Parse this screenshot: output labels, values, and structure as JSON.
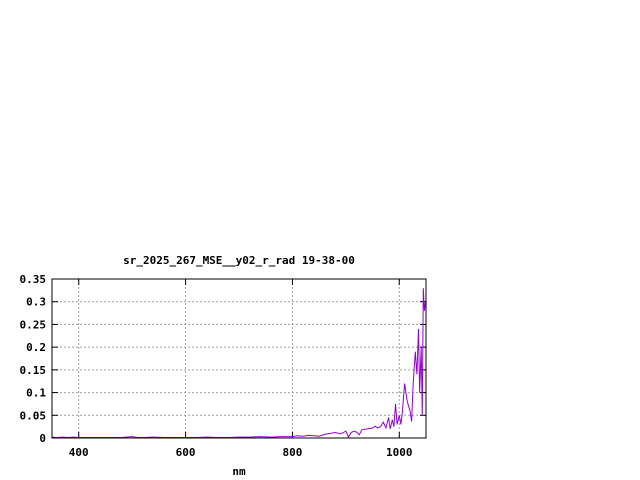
{
  "chart_data": {
    "type": "line",
    "title": "sr_2025_267_MSE__y02_r_rad 19-38-00",
    "xlabel": "nm",
    "ylabel": "",
    "xlim": [
      350,
      1050
    ],
    "ylim": [
      0,
      0.35
    ],
    "xticks": [
      400,
      600,
      800,
      1000
    ],
    "xtick_labels": [
      "400",
      "600",
      "800",
      "1000"
    ],
    "yticks": [
      0,
      0.05,
      0.1,
      0.15,
      0.2,
      0.25,
      0.3,
      0.35
    ],
    "ytick_labels": [
      "0",
      "0.05",
      "0.1",
      "0.15",
      "0.2",
      "0.25",
      "0.3",
      "0.35"
    ],
    "grid": true,
    "legend": "none",
    "series": [
      {
        "color": "#9400d3",
        "x": [
          350,
          360,
          370,
          380,
          390,
          400,
          420,
          440,
          460,
          480,
          500,
          510,
          520,
          540,
          560,
          580,
          600,
          620,
          640,
          660,
          680,
          700,
          720,
          740,
          760,
          780,
          800,
          810,
          820,
          830,
          840,
          850,
          860,
          870,
          880,
          890,
          900,
          905,
          910,
          915,
          920,
          925,
          930,
          940,
          950,
          955,
          960,
          965,
          970,
          975,
          980,
          983,
          987,
          990,
          993,
          996,
          1000,
          1003,
          1006,
          1010,
          1015,
          1020,
          1023,
          1026,
          1030,
          1033,
          1036,
          1038,
          1041,
          1043,
          1045,
          1047,
          1049
        ],
        "y": [
          0.002,
          0.001,
          0.002,
          0.001,
          0.002,
          0.001,
          0.001,
          0.001,
          0.001,
          0.001,
          0.003,
          0.001,
          0.001,
          0.002,
          0.001,
          0.001,
          0.001,
          0.001,
          0.002,
          0.001,
          0.001,
          0.002,
          0.002,
          0.003,
          0.002,
          0.003,
          0.003,
          0.005,
          0.004,
          0.006,
          0.005,
          0.004,
          0.008,
          0.01,
          0.012,
          0.009,
          0.015,
          0.002,
          0.012,
          0.015,
          0.013,
          0.007,
          0.018,
          0.02,
          0.022,
          0.026,
          0.022,
          0.025,
          0.035,
          0.022,
          0.045,
          0.02,
          0.04,
          0.025,
          0.075,
          0.03,
          0.05,
          0.03,
          0.06,
          0.12,
          0.08,
          0.06,
          0.036,
          0.12,
          0.19,
          0.14,
          0.24,
          0.1,
          0.2,
          0.05,
          0.33,
          0.28,
          0.3
        ]
      }
    ]
  }
}
